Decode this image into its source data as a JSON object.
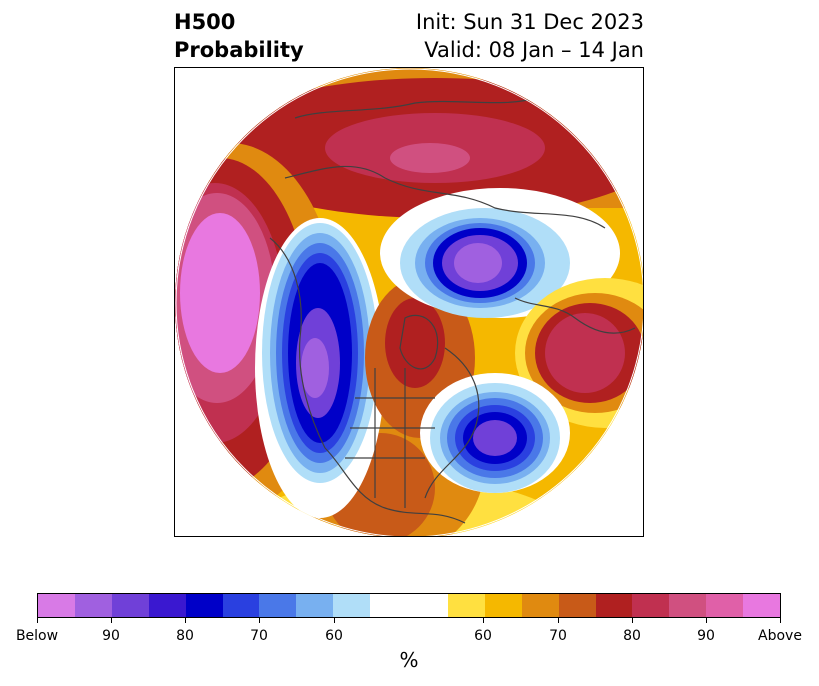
{
  "title": {
    "left_line1": "H500",
    "left_line2": "Probability",
    "right_line1": "Init: Sun 31 Dec 2023",
    "right_line2": "Valid: 08 Jan – 14 Jan"
  },
  "map": {
    "projection": "north-polar-stereographic",
    "field": "H500 probability",
    "background_color": "#ffffff",
    "coastline_color": "#404040"
  },
  "colorbar": {
    "unit": "%",
    "tick_labels": [
      "Below",
      "90",
      "80",
      "70",
      "60",
      "60",
      "70",
      "80",
      "90",
      "Above"
    ],
    "segments": [
      {
        "color": "#d87ae6",
        "range": "Below 95"
      },
      {
        "color": "#a060e0",
        "range": "90-95 below"
      },
      {
        "color": "#7040d8",
        "range": "85-90 below"
      },
      {
        "color": "#3a18d0",
        "range": "80-85 below"
      },
      {
        "color": "#0000c8",
        "range": "75-80 below"
      },
      {
        "color": "#2a40e0",
        "range": "70-75 below"
      },
      {
        "color": "#4a78e8",
        "range": "65-70 below"
      },
      {
        "color": "#78b0f0",
        "range": "60-65 below"
      },
      {
        "color": "#b0def8",
        "range": "55-60 below"
      },
      {
        "color": "#ffffff",
        "range": "neutral",
        "wide": true
      },
      {
        "color": "#ffe040",
        "range": "55-60 above"
      },
      {
        "color": "#f5b800",
        "range": "60-65 above"
      },
      {
        "color": "#e08a10",
        "range": "65-70 above"
      },
      {
        "color": "#c85a18",
        "range": "70-75 above"
      },
      {
        "color": "#b02020",
        "range": "75-80 above"
      },
      {
        "color": "#c03050",
        "range": "80-85 above"
      },
      {
        "color": "#d05080",
        "range": "85-90 above"
      },
      {
        "color": "#e060a8",
        "range": "90-95 above"
      },
      {
        "color": "#e878e0",
        "range": "Above 95"
      }
    ]
  }
}
